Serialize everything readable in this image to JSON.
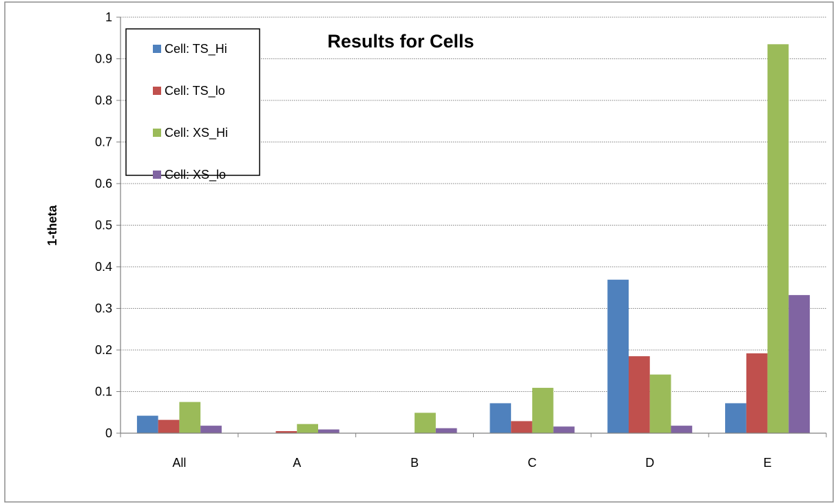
{
  "chart_data": {
    "type": "bar",
    "title": "Results for Cells",
    "xlabel": "",
    "ylabel": "1-theta",
    "ylim": [
      0,
      1
    ],
    "yticks": [
      "0",
      "0.1",
      "0.2",
      "0.3",
      "0.4",
      "0.5",
      "0.6",
      "0.7",
      "0.8",
      "0.9",
      "1"
    ],
    "categories": [
      "All",
      "A",
      "B",
      "C",
      "D",
      "E"
    ],
    "grid": true,
    "legend_position": "top-left",
    "series": [
      {
        "name": "Cell: TS_Hi",
        "color": "#4f81bd",
        "values": [
          0.042,
          0.0,
          0.0,
          0.072,
          0.369,
          0.072
        ]
      },
      {
        "name": "Cell: TS_lo",
        "color": "#c0504d",
        "values": [
          0.032,
          0.005,
          0.0,
          0.029,
          0.185,
          0.192
        ]
      },
      {
        "name": "Cell: XS_Hi",
        "color": "#9bbb59",
        "values": [
          0.075,
          0.022,
          0.049,
          0.109,
          0.141,
          0.935
        ]
      },
      {
        "name": "Cell: XS_lo",
        "color": "#8064a2",
        "values": [
          0.018,
          0.009,
          0.012,
          0.016,
          0.018,
          0.332
        ]
      }
    ]
  }
}
